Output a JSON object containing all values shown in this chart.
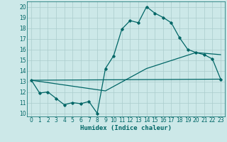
{
  "title": "",
  "xlabel": "Humidex (Indice chaleur)",
  "bg_color": "#cce8e8",
  "grid_color": "#aacccc",
  "line_color": "#006666",
  "xlim": [
    -0.5,
    23.5
  ],
  "ylim": [
    9.7,
    20.5
  ],
  "yticks": [
    10,
    11,
    12,
    13,
    14,
    15,
    16,
    17,
    18,
    19,
    20
  ],
  "xticks": [
    0,
    1,
    2,
    3,
    4,
    5,
    6,
    7,
    8,
    9,
    10,
    11,
    12,
    13,
    14,
    15,
    16,
    17,
    18,
    19,
    20,
    21,
    22,
    23
  ],
  "line1_x": [
    0,
    1,
    2,
    3,
    4,
    5,
    6,
    7,
    8,
    9,
    10,
    11,
    12,
    13,
    14,
    15,
    16,
    17,
    18,
    19,
    20,
    21,
    22,
    23
  ],
  "line1_y": [
    13.1,
    11.9,
    12.0,
    11.4,
    10.8,
    11.0,
    10.9,
    11.1,
    10.0,
    14.2,
    15.4,
    17.9,
    18.7,
    18.5,
    20.0,
    19.4,
    19.0,
    18.5,
    17.1,
    16.0,
    15.7,
    15.5,
    15.1,
    13.2
  ],
  "line2_x": [
    0,
    23
  ],
  "line2_y": [
    13.1,
    13.2
  ],
  "line3_x": [
    0,
    9,
    14,
    20,
    23
  ],
  "line3_y": [
    13.1,
    12.1,
    14.2,
    15.7,
    15.5
  ]
}
